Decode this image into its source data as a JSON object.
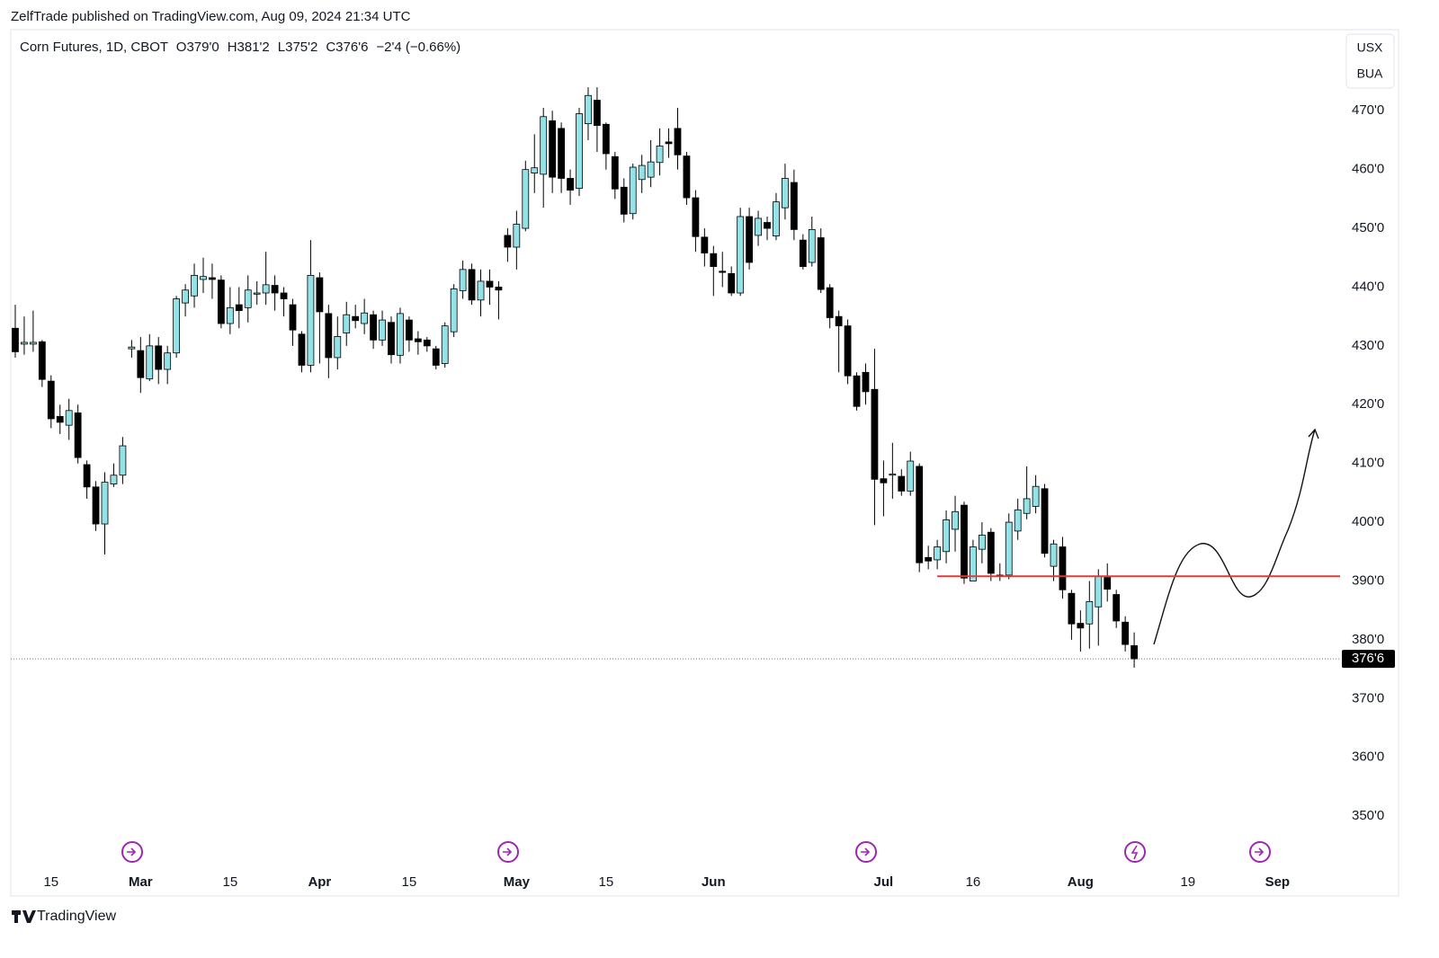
{
  "chart_data": {
    "type": "candlestick",
    "published": "ZelfTrade published on TradingView.com, Aug 09, 2024 21:34 UTC",
    "legend": {
      "symbol": "Corn Futures, 1D, CBOT",
      "open": "O379'0",
      "high": "H381'2",
      "low": "L375'2",
      "close": "C376'6",
      "change": "−2'4 (−0.66%)"
    },
    "units": [
      "USX",
      "BUA"
    ],
    "brand": "TradingView",
    "up_color": "#93e2e8",
    "down_color": "#000000",
    "xlim": [
      -0.5,
      148
    ],
    "xticks": [
      {
        "value": 4,
        "label": "15"
      },
      {
        "value": 14,
        "label": "Mar"
      },
      {
        "value": 24,
        "label": "15"
      },
      {
        "value": 34,
        "label": "Apr"
      },
      {
        "value": 44,
        "label": "15"
      },
      {
        "value": 56,
        "label": "May"
      },
      {
        "value": 66,
        "label": "15"
      },
      {
        "value": 78,
        "label": "Jun"
      },
      {
        "value": 97,
        "label": "Jul"
      },
      {
        "value": 107,
        "label": "16"
      },
      {
        "value": 119,
        "label": "Aug"
      },
      {
        "value": 131,
        "label": "19"
      },
      {
        "value": 141,
        "label": "Sep"
      }
    ],
    "ylim": [
      341.3,
      483.8
    ],
    "yticks": [
      {
        "value": 350,
        "label": "350'0"
      },
      {
        "value": 360,
        "label": "360'0"
      },
      {
        "value": 370,
        "label": "370'0"
      },
      {
        "value": 380,
        "label": "380'0"
      },
      {
        "value": 390,
        "label": "390'0"
      },
      {
        "value": 400,
        "label": "400'0"
      },
      {
        "value": 410,
        "label": "410'0"
      },
      {
        "value": 420,
        "label": "420'0"
      },
      {
        "value": 430,
        "label": "430'0"
      },
      {
        "value": 440,
        "label": "440'0"
      },
      {
        "value": 450,
        "label": "450'0"
      },
      {
        "value": 460,
        "label": "460'0"
      },
      {
        "value": 470,
        "label": "470'0"
      }
    ],
    "last_price": {
      "value": 376.75,
      "label": "376'6"
    },
    "levels": [
      {
        "value": 390.8,
        "start": 103,
        "color": "#e53935"
      }
    ],
    "open": [
      433,
      430.3,
      430.3,
      430.7,
      424,
      418,
      416.5,
      418.6,
      409.8,
      406,
      399.7,
      406.5,
      408,
      429.5,
      429.2,
      424.4,
      430,
      426,
      428.8,
      437.3,
      438.5,
      441.3,
      441.6,
      441.2,
      433.8,
      437,
      436.5,
      438.8,
      439,
      440.3,
      439,
      437,
      432,
      426.7,
      441.6,
      435.5,
      428,
      432.2,
      435,
      433.8,
      435.3,
      431,
      434,
      428.4,
      434.4,
      431.2,
      431,
      429.5,
      427,
      432.4,
      439.4,
      443,
      437.8,
      441,
      440,
      448.8,
      446.8,
      450,
      459.4,
      459.2,
      468.3,
      467,
      458.5,
      456.8,
      467.8,
      471.8,
      467.7,
      462.2,
      457,
      452.5,
      458.3,
      458.7,
      461.2,
      464.7,
      467,
      462.3,
      455.2,
      448.5,
      445.7,
      442.7,
      442.3,
      439,
      452,
      448.8,
      451,
      448.7,
      453.5,
      457.8,
      448,
      444.2,
      448.4,
      439.9,
      435,
      433.4,
      424.9,
      425.5,
      422.6,
      407.4,
      408,
      407.8,
      405.3,
      409.5,
      394,
      393.6,
      395,
      398.8,
      402.9,
      390,
      395.4,
      398.3,
      391,
      391,
      398.5,
      401.5,
      402.7,
      405.7,
      392.5,
      395.8,
      387.9,
      382.8,
      382.7,
      385.6,
      390.6,
      387.7,
      383,
      379
    ],
    "high": [
      437,
      435,
      436,
      431,
      425,
      420,
      421,
      420,
      410.5,
      407,
      408.5,
      410,
      414.5,
      431,
      431.5,
      432,
      431.5,
      430,
      438.5,
      440.5,
      444,
      445,
      444,
      442,
      440,
      440,
      442,
      441,
      446,
      442,
      440,
      438,
      432.5,
      448,
      442.5,
      437,
      435,
      437.5,
      437,
      438,
      436,
      436,
      435,
      436.5,
      435,
      432.5,
      431.5,
      430,
      434,
      440.5,
      444.5,
      444,
      443,
      443,
      441,
      450,
      453,
      461.5,
      466,
      470.5,
      470,
      468,
      460,
      470.5,
      474,
      474,
      468,
      463,
      458.5,
      461,
      462.5,
      465,
      467,
      467,
      470.5,
      463,
      456.5,
      450,
      447,
      446,
      443.5,
      453.5,
      453.5,
      453,
      452,
      456,
      461,
      460,
      449,
      452,
      450,
      440.5,
      436,
      434.5,
      425.5,
      427,
      429.5,
      410.5,
      413.5,
      409,
      412,
      410,
      396,
      397,
      402,
      404.5,
      403.5,
      397,
      400,
      399,
      393,
      401.5,
      404,
      409.5,
      408,
      406.5,
      397,
      397.5,
      388.5,
      385,
      390,
      392,
      393,
      388.5,
      384,
      381.25
    ],
    "low": [
      428,
      428.5,
      429,
      423,
      416,
      415,
      414,
      410,
      404,
      398.5,
      394.5,
      406,
      406.5,
      428,
      422,
      424,
      423.5,
      423.5,
      428,
      435,
      436.5,
      439,
      438,
      433,
      432,
      433,
      434,
      437,
      437,
      436,
      435,
      430,
      425.5,
      425.5,
      427,
      424.5,
      426,
      430,
      433,
      432,
      429.5,
      430,
      427,
      427,
      429,
      428.5,
      429,
      426,
      426.3,
      431.5,
      438,
      437,
      435,
      437,
      434.5,
      444.3,
      443,
      449.5,
      456,
      453.5,
      456,
      456,
      454,
      455.5,
      465,
      463,
      460,
      455,
      451,
      451.5,
      456,
      457,
      459,
      462,
      460,
      454,
      446,
      443.5,
      438.5,
      440,
      438.5,
      438.5,
      443,
      447,
      448,
      448,
      451.5,
      448,
      443,
      443.5,
      439,
      433,
      425.5,
      423.5,
      419,
      420,
      399.5,
      401,
      404,
      404.5,
      404.5,
      391.5,
      392,
      392,
      393,
      395,
      389.5,
      390,
      393,
      390,
      390,
      390.3,
      397,
      400.5,
      401.5,
      394,
      390,
      387,
      380,
      378,
      378.5,
      379,
      386.5,
      382,
      378,
      375.25
    ],
    "close": [
      429,
      430.6,
      430.6,
      424.3,
      417.6,
      417,
      419,
      411,
      406,
      399.7,
      406.8,
      408,
      413,
      429.8,
      424.6,
      430,
      426,
      428.8,
      438,
      439.5,
      442,
      441.8,
      441.3,
      433.8,
      436.5,
      436,
      439.5,
      439,
      440.4,
      439,
      438,
      432.7,
      426.7,
      442,
      435.8,
      428,
      431.6,
      435.3,
      434.3,
      435.6,
      431,
      434.4,
      428.5,
      435.5,
      431,
      430.7,
      430,
      426.7,
      433.4,
      439.7,
      443,
      437.8,
      441,
      440,
      439.5,
      446.8,
      450.7,
      460,
      460.3,
      469,
      458.7,
      458.5,
      456.5,
      469.5,
      472.6,
      467.5,
      462.7,
      456.7,
      452.4,
      460.4,
      460.7,
      461.3,
      464,
      464.4,
      462.5,
      455.2,
      448.6,
      445.8,
      443.5,
      442.5,
      439,
      452,
      444.2,
      451.7,
      450,
      454.5,
      458.5,
      449.8,
      443.5,
      449.8,
      439.6,
      434.8,
      433.4,
      424.9,
      419.7,
      422.2,
      407.3,
      406.7,
      408.2,
      405.3,
      410.4,
      393.1,
      393.4,
      395.8,
      400.4,
      401.8,
      390.5,
      395.8,
      397.8,
      391.3,
      390.8,
      400,
      402.1,
      404,
      406.1,
      394.7,
      396.3,
      388.5,
      382.7,
      382,
      386.5,
      390.8,
      388.6,
      383.2,
      379.2,
      376.75
    ]
  }
}
